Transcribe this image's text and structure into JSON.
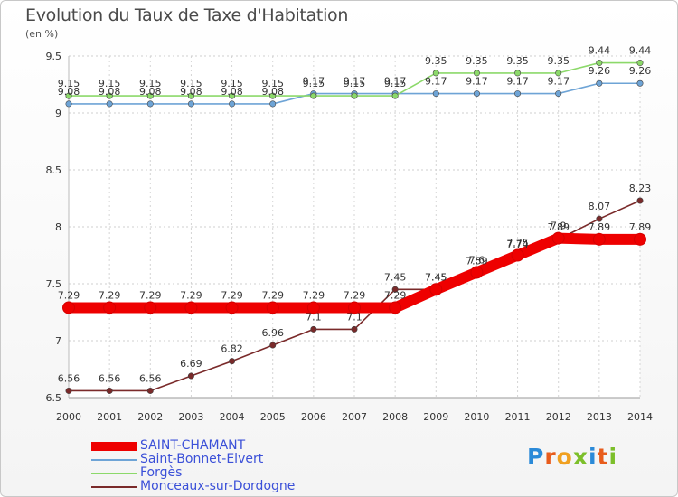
{
  "chart_data": {
    "type": "line",
    "title": "Evolution du Taux de Taxe d'Habitation",
    "ylabel": "(en %)",
    "xlabel": "",
    "x": [
      "2000",
      "2001",
      "2002",
      "2003",
      "2004",
      "2005",
      "2006",
      "2007",
      "2008",
      "2009",
      "2010",
      "2011",
      "2012",
      "2013",
      "2014"
    ],
    "ylim": [
      6.5,
      9.5
    ],
    "yticks": [
      "6.5",
      "7",
      "7.5",
      "8",
      "8.5",
      "9",
      "9.5"
    ],
    "grid": true,
    "legend_position": "bottom-left",
    "series": [
      {
        "name": "SAINT-CHAMANT",
        "color": "#ee0000",
        "emphasis": true,
        "values": [
          7.29,
          7.29,
          7.29,
          7.29,
          7.29,
          7.29,
          7.29,
          7.29,
          7.29,
          7.45,
          7.6,
          7.75,
          7.9,
          7.89,
          7.89
        ],
        "labels": [
          "7.29",
          "7.29",
          "7.29",
          "7.29",
          "7.29",
          "7.29",
          "7.29",
          "7.29",
          "7.29",
          "7.45",
          "7.6",
          "7.75",
          "7.9",
          "7.89",
          "7.89"
        ]
      },
      {
        "name": "Saint-Bonnet-Elvert",
        "color": "#6ea4d6",
        "emphasis": false,
        "values": [
          9.08,
          9.08,
          9.08,
          9.08,
          9.08,
          9.08,
          9.17,
          9.17,
          9.17,
          9.17,
          9.17,
          9.17,
          9.17,
          9.26,
          9.26
        ],
        "labels": [
          "9.08",
          "9.08",
          "9.08",
          "9.08",
          "9.08",
          "9.08",
          "9.17",
          "9.17",
          "9.17",
          "9.17",
          "9.17",
          "9.17",
          "9.17",
          "9.26",
          "9.26"
        ]
      },
      {
        "name": "Forgès",
        "color": "#8cd96a",
        "emphasis": false,
        "values": [
          9.15,
          9.15,
          9.15,
          9.15,
          9.15,
          9.15,
          9.15,
          9.15,
          9.15,
          9.35,
          9.35,
          9.35,
          9.35,
          9.44,
          9.44
        ],
        "labels": [
          "9.15",
          "9.15",
          "9.15",
          "9.15",
          "9.15",
          "9.15",
          "9.15",
          "9.15",
          "9.15",
          "9.35",
          "9.35",
          "9.35",
          "9.35",
          "9.44",
          "9.44"
        ]
      },
      {
        "name": "Monceaux-sur-Dordogne",
        "color": "#7a2a2a",
        "emphasis": false,
        "values": [
          6.56,
          6.56,
          6.56,
          6.69,
          6.82,
          6.96,
          7.1,
          7.1,
          7.45,
          7.45,
          7.59,
          7.74,
          7.89,
          8.07,
          8.23
        ],
        "labels": [
          "6.56",
          "6.56",
          "6.56",
          "6.69",
          "6.82",
          "6.96",
          "7.1",
          "7.1",
          "7.45",
          "7.45",
          "7.59",
          "7.74",
          "7.89",
          "8.07",
          "8.23"
        ]
      }
    ]
  },
  "brand": {
    "logo_letters": [
      "P",
      "r",
      "o",
      "x",
      "i",
      "t",
      "i"
    ]
  }
}
